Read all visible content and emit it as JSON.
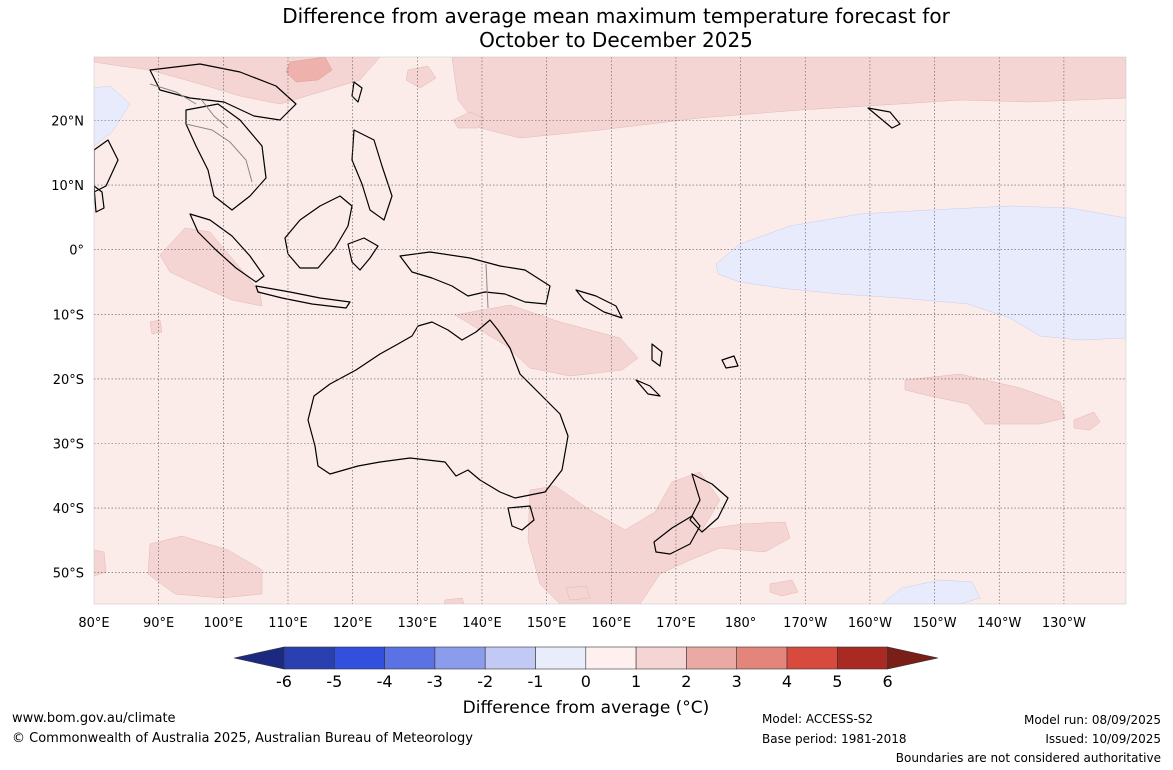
{
  "title": {
    "line1": "Difference from average mean maximum temperature forecast for",
    "line2": "October to December 2025"
  },
  "map": {
    "lat_ticks": [
      "20°N",
      "10°N",
      "0°",
      "10°S",
      "20°S",
      "30°S",
      "40°S",
      "50°S"
    ],
    "lon_ticks": [
      "80°E",
      "90°E",
      "100°E",
      "110°E",
      "120°E",
      "130°E",
      "140°E",
      "150°E",
      "160°E",
      "170°E",
      "180°",
      "170°W",
      "160°W",
      "150°W",
      "140°W",
      "130°W"
    ],
    "colors": {
      "ocean_0_1": "#fbecea",
      "warm_1_2": "#f4d5d3",
      "warm_2_3": "#eeb1ab",
      "cool_0_m1": "#e8ebfb",
      "coast": "#000000",
      "border": "#888888",
      "grid": "#555555"
    }
  },
  "colorbar": {
    "title": "Difference from average (°C)",
    "ticks": [
      "-6",
      "-5",
      "-4",
      "-3",
      "-2",
      "-1",
      "0",
      "1",
      "2",
      "3",
      "4",
      "5",
      "6"
    ],
    "colors": [
      "#1b2a80",
      "#2a40b0",
      "#3250dd",
      "#5a72e4",
      "#8a9ceb",
      "#c1c9f4",
      "#e9ecfb",
      "#fdf0ef",
      "#f4d5d3",
      "#eaa9a3",
      "#e4857c",
      "#d84a3d",
      "#a92a22",
      "#7a1e18"
    ]
  },
  "footer": {
    "url": "www.bom.gov.au/climate",
    "copyright": "© Commonwealth of Australia 2025, Australian Bureau of Meteorology",
    "model": "Model: ACCESS-S2",
    "base_period": "Base period: 1981-2018",
    "model_run": "Model run: 08/09/2025",
    "issued": "Issued: 10/09/2025",
    "disclaimer": "Boundaries are not considered authoritative"
  }
}
